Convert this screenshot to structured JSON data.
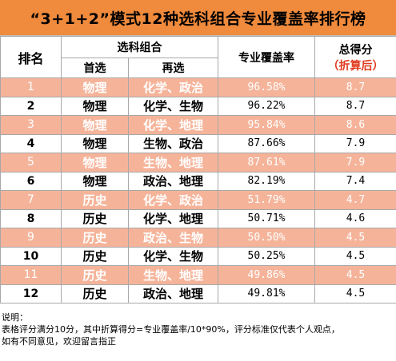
{
  "title": "“3+1+2”模式12种选科组合专业覆盖率排行榜",
  "headers": {
    "rank": "排名",
    "combo": "选科组合",
    "first": "首选",
    "second": "再选",
    "coverage": "专业覆盖率",
    "score": "总得分",
    "score_note": "（折算后）"
  },
  "rows": [
    {
      "rank": "1",
      "first": "物理",
      "second": "化学、政治",
      "coverage": "96.58%",
      "score": "8.7"
    },
    {
      "rank": "2",
      "first": "物理",
      "second": "化学、生物",
      "coverage": "96.22%",
      "score": "8.7"
    },
    {
      "rank": "3",
      "first": "物理",
      "second": "化学、地理",
      "coverage": "95.84%",
      "score": "8.6"
    },
    {
      "rank": "4",
      "first": "物理",
      "second": "生物、政治",
      "coverage": "87.66%",
      "score": "7.9"
    },
    {
      "rank": "5",
      "first": "物理",
      "second": "生物、地理",
      "coverage": "87.61%",
      "score": "7.9"
    },
    {
      "rank": "6",
      "first": "物理",
      "second": "政治、地理",
      "coverage": "82.19%",
      "score": "7.4"
    },
    {
      "rank": "7",
      "first": "历史",
      "second": "化学、政治",
      "coverage": "51.79%",
      "score": "4.7"
    },
    {
      "rank": "8",
      "first": "历史",
      "second": "化学、地理",
      "coverage": "50.71%",
      "score": "4.6"
    },
    {
      "rank": "9",
      "first": "历史",
      "second": "政治、生物",
      "coverage": "50.50%",
      "score": "4.5"
    },
    {
      "rank": "10",
      "first": "历史",
      "second": "化学、生物",
      "coverage": "50.25%",
      "score": "4.5"
    },
    {
      "rank": "11",
      "first": "历史",
      "second": "生物、地理",
      "coverage": "49.86%",
      "score": "4.5"
    },
    {
      "rank": "12",
      "first": "历史",
      "second": "政治、地理",
      "coverage": "49.81%",
      "score": "4.5"
    }
  ],
  "notes": {
    "label": "说明：",
    "line1": "表格评分满分10分，其中折算得分=专业覆盖率/10*90%，评分标准仅代表个人观点，",
    "line2": "如有不同意见，欢迎留言指正"
  },
  "colors": {
    "title_bg": "#f08a3c",
    "odd_row_bg": "#f5b49a",
    "even_row_bg": "#ffffff",
    "score_note": "#e03a1e"
  }
}
